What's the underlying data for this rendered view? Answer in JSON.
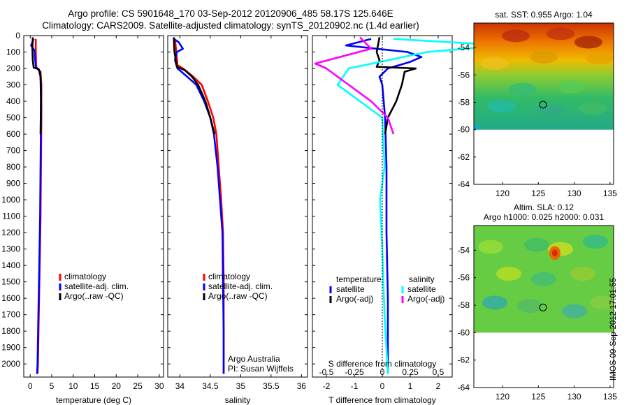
{
  "title_lines": [
    "Argo profile: CS 5901648_170 03-Sep-2012 20120906_485 58.17S 125.646E",
    "Climatology: CARS2009. Satellite-adjusted climatology: synTS_20120902.nc (1.4d earlier)"
  ],
  "stamp": "IMOS 09-Sep-2012 17:01:55",
  "colors": {
    "climatology": "#ff0000",
    "satellite": "#0000ff",
    "argo": "#000000",
    "sat_salinity": "#00ffff",
    "argo_salinity": "#ff00ff"
  },
  "chart_data": [
    {
      "type": "line",
      "id": "temperature",
      "xlabel": "temperature (deg C)",
      "xlim": [
        -1.5,
        31
      ],
      "xticks": [
        0,
        5,
        10,
        15,
        20,
        25,
        30
      ],
      "ylim": [
        2080,
        0
      ],
      "yticks": [
        0,
        100,
        200,
        300,
        400,
        500,
        600,
        700,
        800,
        900,
        1000,
        1100,
        1200,
        1300,
        1400,
        1500,
        1600,
        1700,
        1800,
        1900,
        2000
      ],
      "legend": [
        "climatology",
        "satellite-adj. clim.",
        "Argo(..raw -QC)"
      ],
      "series": [
        {
          "name": "climatology",
          "color": "#ff0000",
          "points": [
            [
              1.3,
              20
            ],
            [
              1.3,
              100
            ],
            [
              1.4,
              190
            ],
            [
              2.4,
              220
            ],
            [
              2.6,
              300
            ],
            [
              2.6,
              500
            ],
            [
              2.5,
              800
            ],
            [
              2.4,
              1100
            ],
            [
              2.2,
              1400
            ],
            [
              2.0,
              1700
            ],
            [
              1.8,
              2000
            ],
            [
              1.7,
              2060
            ]
          ]
        },
        {
          "name": "satellite-adj. clim.",
          "color": "#0000ff",
          "points": [
            [
              0.8,
              20
            ],
            [
              0.2,
              60
            ],
            [
              1.0,
              90
            ],
            [
              1.1,
              130
            ],
            [
              1.3,
              190
            ],
            [
              2.3,
              220
            ],
            [
              2.5,
              300
            ],
            [
              2.5,
              500
            ],
            [
              2.4,
              800
            ],
            [
              2.3,
              1100
            ],
            [
              2.1,
              1400
            ],
            [
              1.9,
              1700
            ],
            [
              1.7,
              2000
            ],
            [
              1.6,
              2060
            ]
          ]
        },
        {
          "name": "Argo(..raw -QC)",
          "color": "#000000",
          "points": [
            [
              0.6,
              10
            ],
            [
              0.5,
              80
            ],
            [
              0.6,
              150
            ],
            [
              0.8,
              195
            ],
            [
              2.0,
              205
            ],
            [
              2.4,
              250
            ],
            [
              2.5,
              400
            ],
            [
              2.4,
              600
            ]
          ]
        }
      ]
    },
    {
      "type": "line",
      "id": "salinity",
      "xlabel": "salinity",
      "xlim": [
        33.8,
        36.1
      ],
      "xticks": [
        34,
        34.5,
        35,
        35.5,
        36
      ],
      "xticklabels": [
        "34",
        "34.5",
        "35",
        "35.5",
        "36"
      ],
      "ylim": [
        2080,
        0
      ],
      "legend": [
        "climatology",
        "satellite-adj. clim.",
        "Argo(..raw -QC)"
      ],
      "annotation": [
        "Argo Australia",
        "PI: Susan Wijffels"
      ],
      "series": [
        {
          "name": "climatology",
          "color": "#ff0000",
          "points": [
            [
              33.92,
              20
            ],
            [
              33.94,
              100
            ],
            [
              33.96,
              180
            ],
            [
              34.05,
              200
            ],
            [
              34.22,
              250
            ],
            [
              34.36,
              300
            ],
            [
              34.46,
              400
            ],
            [
              34.55,
              500
            ],
            [
              34.6,
              600
            ],
            [
              34.64,
              800
            ],
            [
              34.68,
              1000
            ],
            [
              34.71,
              1200
            ],
            [
              34.72,
              1500
            ],
            [
              34.72,
              1800
            ],
            [
              34.72,
              2060
            ]
          ]
        },
        {
          "name": "satellite-adj. clim.",
          "color": "#0000ff",
          "points": [
            [
              33.9,
              20
            ],
            [
              33.98,
              40
            ],
            [
              34.05,
              80
            ],
            [
              33.95,
              100
            ],
            [
              33.92,
              150
            ],
            [
              33.96,
              200
            ],
            [
              34.12,
              250
            ],
            [
              34.27,
              300
            ],
            [
              34.4,
              400
            ],
            [
              34.5,
              500
            ],
            [
              34.56,
              600
            ],
            [
              34.62,
              800
            ],
            [
              34.66,
              1000
            ],
            [
              34.7,
              1200
            ],
            [
              34.71,
              1500
            ],
            [
              34.72,
              1800
            ],
            [
              34.72,
              2060
            ]
          ]
        },
        {
          "name": "Argo(..raw -QC)",
          "color": "#000000",
          "points": [
            [
              33.9,
              10
            ],
            [
              33.91,
              100
            ],
            [
              33.95,
              190
            ],
            [
              34.08,
              210
            ],
            [
              34.2,
              250
            ],
            [
              34.3,
              300
            ],
            [
              34.42,
              400
            ],
            [
              34.5,
              500
            ],
            [
              34.57,
              600
            ]
          ]
        }
      ]
    },
    {
      "type": "line",
      "id": "difference",
      "xlabel": "T difference from climatology",
      "xlim": [
        -2.5,
        2.5
      ],
      "xticks": [
        -2,
        -1,
        0,
        1,
        2
      ],
      "top_axis_label": "S difference from climatology",
      "top_ticks": [
        "-0.5",
        "-0.25",
        "0",
        "0.25",
        "0.5"
      ],
      "ylim": [
        2080,
        0
      ],
      "legend_temperature": {
        "heading": "temperature",
        "items": [
          "satellite",
          "Argo(-adj)"
        ]
      },
      "legend_salinity": {
        "heading": "salinity",
        "items": [
          "satellite",
          "Argo(-adj)"
        ]
      },
      "series": [
        {
          "name": "satellite",
          "kind": "T",
          "color": "#0000ff",
          "points": [
            [
              -0.4,
              20
            ],
            [
              -1.3,
              60
            ],
            [
              -0.2,
              80
            ],
            [
              0.9,
              100
            ],
            [
              1.4,
              130
            ],
            [
              1.0,
              160
            ],
            [
              0.2,
              200
            ],
            [
              -0.1,
              250
            ],
            [
              0,
              300
            ],
            [
              0.1,
              500
            ],
            [
              0.15,
              800
            ],
            [
              0.15,
              1200
            ],
            [
              0.2,
              1600
            ],
            [
              0.2,
              2000
            ],
            [
              0.2,
              2060
            ]
          ]
        },
        {
          "name": "Argo(-adj)",
          "kind": "T",
          "color": "#000000",
          "points": [
            [
              -0.1,
              10
            ],
            [
              -0.2,
              100
            ],
            [
              -0.1,
              150
            ],
            [
              -0.2,
              190
            ],
            [
              1.2,
              200
            ],
            [
              0.8,
              220
            ],
            [
              0.7,
              300
            ],
            [
              0.5,
              400
            ],
            [
              0.2,
              500
            ],
            [
              0.1,
              600
            ]
          ]
        },
        {
          "name": "satellite",
          "kind": "S",
          "color": "#00ffff",
          "points": [
            [
              0.1,
              20
            ],
            [
              1.1,
              60
            ],
            [
              0.4,
              100
            ],
            [
              -0.3,
              200
            ],
            [
              -0.4,
              300
            ],
            [
              -0.2,
              400
            ],
            [
              0,
              500
            ],
            [
              0.02,
              800
            ],
            [
              -0.02,
              1000
            ],
            [
              0,
              1300
            ],
            [
              0.02,
              1700
            ],
            [
              0.05,
              2060
            ]
          ]
        },
        {
          "name": "Argo(-adj)",
          "kind": "S",
          "color": "#ff00ff",
          "points": [
            [
              -0.2,
              10
            ],
            [
              -0.1,
              80
            ],
            [
              -0.6,
              170
            ],
            [
              -0.5,
              200
            ],
            [
              -0.4,
              250
            ],
            [
              -0.3,
              300
            ],
            [
              -0.1,
              400
            ],
            [
              0.05,
              500
            ],
            [
              0.1,
              600
            ]
          ]
        }
      ]
    },
    {
      "type": "heatmap",
      "id": "sst",
      "title": "sat. SST: 0.955 Argo: 1.04",
      "xlim": [
        116,
        135.5
      ],
      "ylim": [
        -64,
        -52.2
      ],
      "xticks": [
        120,
        125,
        130,
        135
      ],
      "yticks": [
        -54,
        -56,
        -58,
        -60,
        -62,
        -64
      ],
      "marker": [
        125.646,
        -58.17
      ]
    },
    {
      "type": "heatmap",
      "id": "sla",
      "title_lines": [
        "Altim. SLA: 0.12",
        "Argo h1000: 0.025 h2000: 0.031"
      ],
      "xlim": [
        116,
        135.5
      ],
      "ylim": [
        -64,
        -52.2
      ],
      "xticks": [
        120,
        125,
        130,
        135
      ],
      "yticks": [
        -54,
        -56,
        -58,
        -60,
        -62,
        -64
      ],
      "marker": [
        125.646,
        -58.17
      ]
    }
  ]
}
